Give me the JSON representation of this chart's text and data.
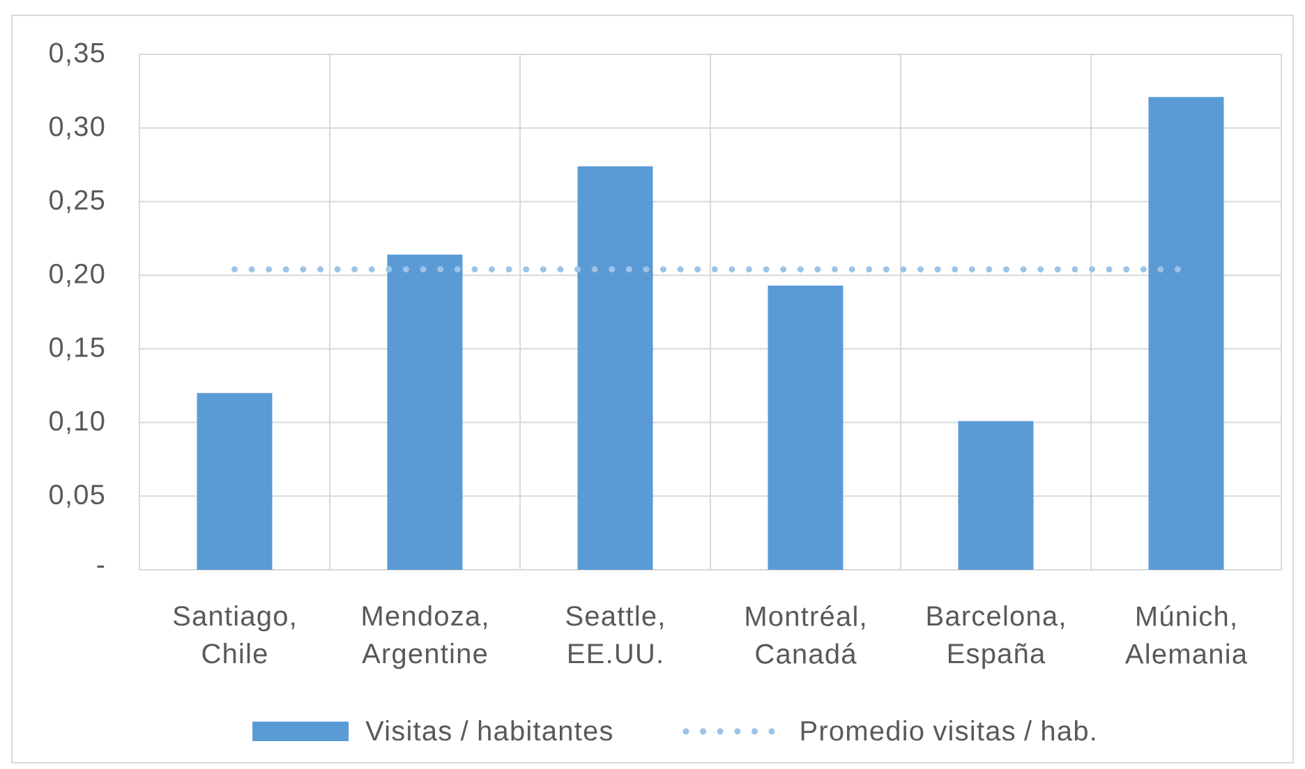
{
  "chart_data": {
    "type": "bar",
    "categories": [
      "Santiago, Chile",
      "Mendoza, Argentine",
      "Seattle, EE.UU.",
      "Montréal, Canadá",
      "Barcelona, España",
      "Múnich, Alemania"
    ],
    "series": [
      {
        "name": "Visitas / habitantes",
        "color": "#5b9bd5",
        "values": [
          0.12,
          0.214,
          0.274,
          0.193,
          0.101,
          0.321
        ]
      },
      {
        "name": "Promedio visitas / hab.",
        "type": "line",
        "line_style": "dotted",
        "color": "#9dc3e6",
        "values": [
          0.204,
          0.204,
          0.204,
          0.204,
          0.204,
          0.204
        ]
      }
    ],
    "ylim": [
      0,
      0.35
    ],
    "yticks": [
      {
        "value": 0,
        "label": "-"
      },
      {
        "value": 0.05,
        "label": "0,05"
      },
      {
        "value": 0.1,
        "label": "0,10"
      },
      {
        "value": 0.15,
        "label": "0,15"
      },
      {
        "value": 0.2,
        "label": "0,20"
      },
      {
        "value": 0.25,
        "label": "0,25"
      },
      {
        "value": 0.3,
        "label": "0,30"
      },
      {
        "value": 0.35,
        "label": "0,35"
      }
    ],
    "grid": true,
    "legend": "bottom"
  }
}
